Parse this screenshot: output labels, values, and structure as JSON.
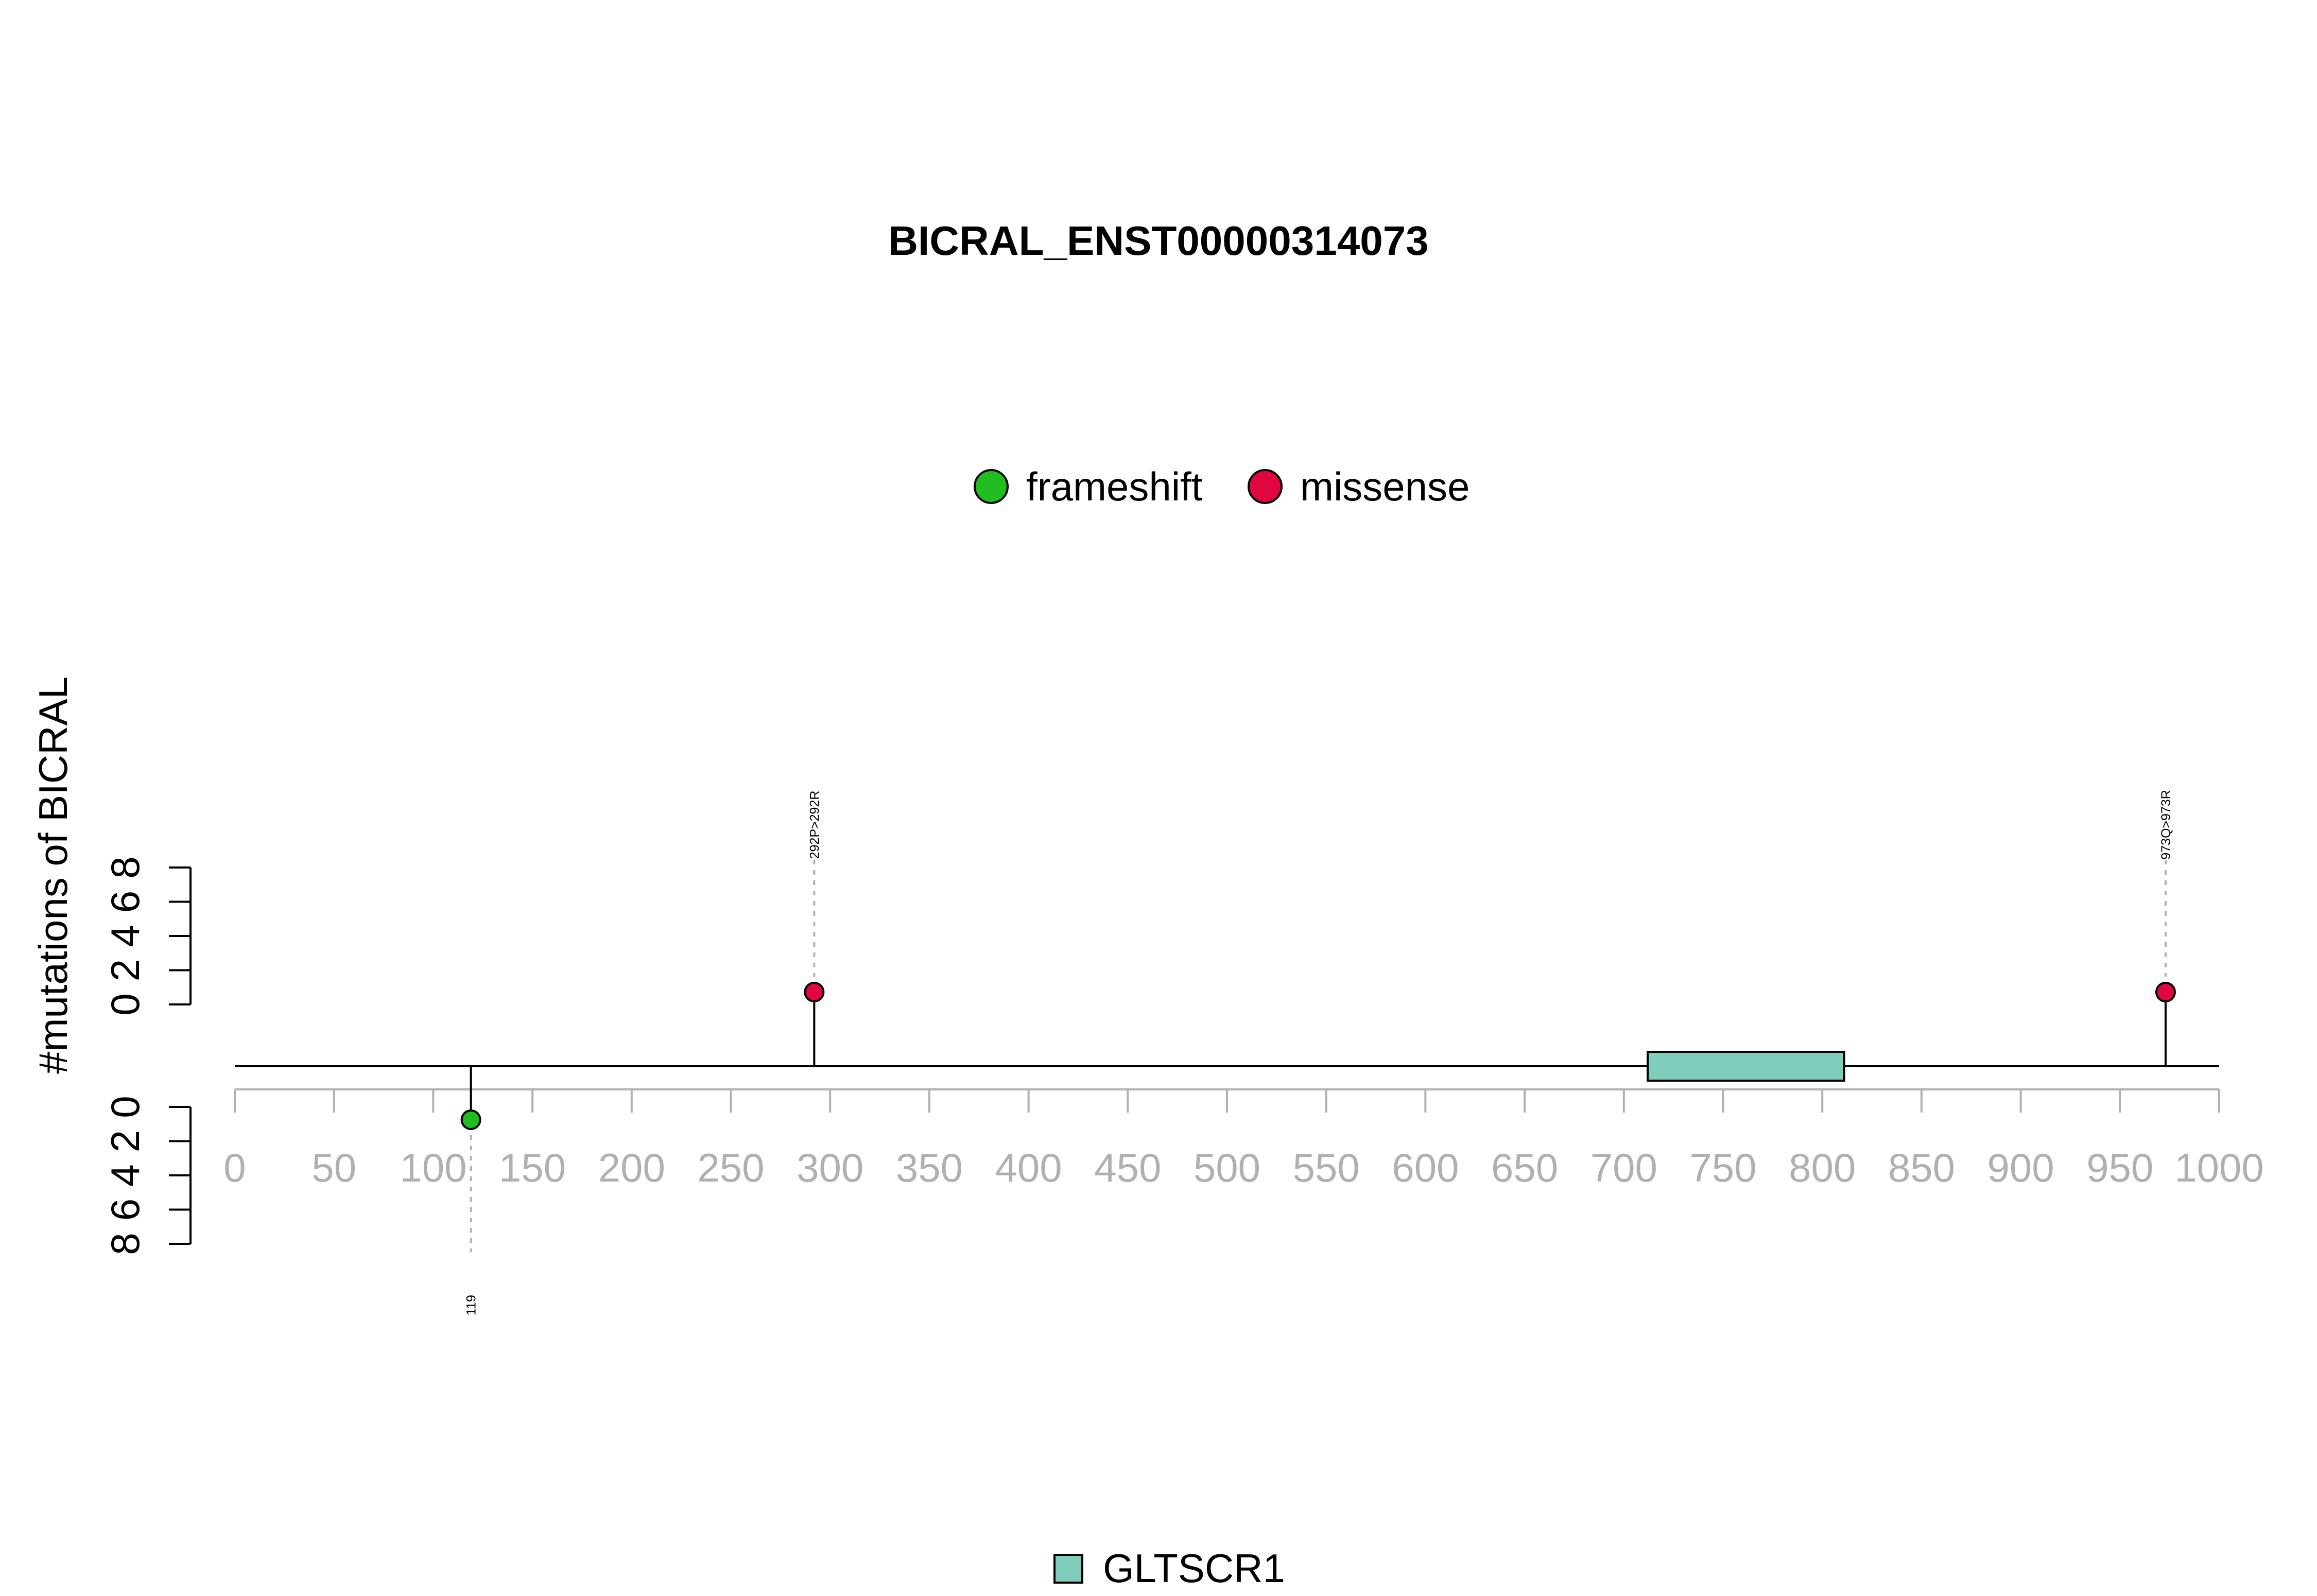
{
  "chart_data": {
    "type": "lollipop",
    "title": "BICRAL_ENST00000314073",
    "ylabel": "#mutations of BICRAL",
    "xlim": [
      0,
      1000
    ],
    "x_ticks": [
      0,
      50,
      100,
      150,
      200,
      250,
      300,
      350,
      400,
      450,
      500,
      550,
      600,
      650,
      700,
      750,
      800,
      850,
      900,
      950,
      1000
    ],
    "y_ticks": [
      0,
      2,
      4,
      6,
      8
    ],
    "ylim": [
      0,
      8
    ],
    "protein_length": 1000,
    "legend": [
      {
        "name": "frameshift",
        "color": "#1fbd1f"
      },
      {
        "name": "missense",
        "color": "#e0063f"
      }
    ],
    "mutations": [
      {
        "position": 119,
        "count": 1,
        "type": "frameshift",
        "side": "bottom",
        "label": "119"
      },
      {
        "position": 292,
        "count": 1,
        "type": "missense",
        "side": "top",
        "label": "292P>292R"
      },
      {
        "position": 973,
        "count": 1,
        "type": "missense",
        "side": "top",
        "label": "973Q>973R"
      }
    ],
    "domains": [
      {
        "name": "GLTSCR1",
        "start": 712,
        "end": 811,
        "color": "#7fcdbb"
      }
    ]
  }
}
